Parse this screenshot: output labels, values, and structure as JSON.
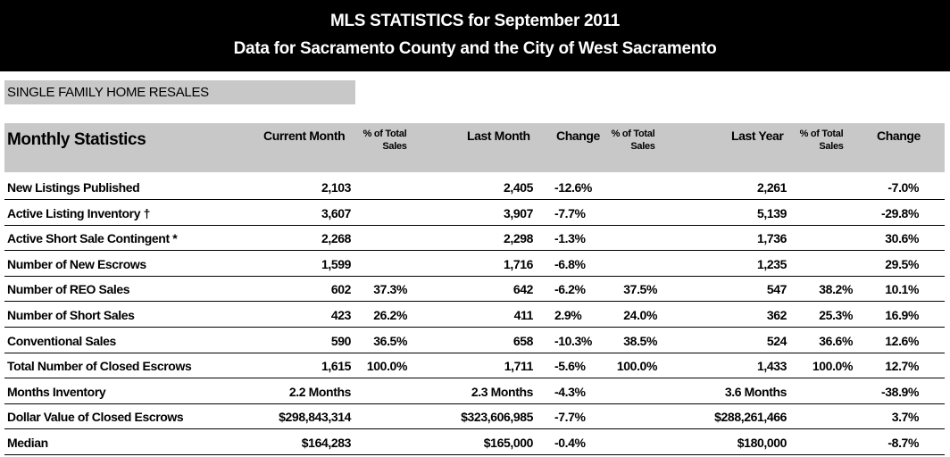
{
  "header": {
    "title": "MLS STATISTICS for September 2011",
    "subtitle": "Data for Sacramento County and the City of West Sacramento"
  },
  "section": "SINGLE FAMILY HOME RESALES",
  "columns": {
    "label": "Monthly Statistics",
    "current": "Current Month",
    "pct": "% of  Total",
    "pct_sub": "Sales",
    "last_month": "Last Month",
    "change": "Change",
    "last_year": "Last Year"
  },
  "rows": [
    {
      "label": "New Listings Published",
      "cur": "2,103",
      "cur_pct": "",
      "lm": "2,405",
      "lm_chg": "-12.6%",
      "lm_pct": "",
      "ly": "2,261",
      "ly_pct": "",
      "ly_chg": "-7.0%"
    },
    {
      "label": "Active Listing Inventory †",
      "cur": "3,607",
      "cur_pct": "",
      "lm": "3,907",
      "lm_chg": "-7.7%",
      "lm_pct": "",
      "ly": "5,139",
      "ly_pct": "",
      "ly_chg": "-29.8%"
    },
    {
      "label": "Active Short Sale Contingent *",
      "cur": "2,268",
      "cur_pct": "",
      "lm": "2,298",
      "lm_chg": "-1.3%",
      "lm_pct": "",
      "ly": "1,736",
      "ly_pct": "",
      "ly_chg": "30.6%"
    },
    {
      "label": "Number of New Escrows",
      "cur": "1,599",
      "cur_pct": "",
      "lm": "1,716",
      "lm_chg": "-6.8%",
      "lm_pct": "",
      "ly": "1,235",
      "ly_pct": "",
      "ly_chg": "29.5%"
    },
    {
      "label": "Number of REO Sales",
      "cur": "602",
      "cur_pct": "37.3%",
      "lm": "642",
      "lm_chg": "-6.2%",
      "lm_pct": "37.5%",
      "ly": "547",
      "ly_pct": "38.2%",
      "ly_chg": "10.1%"
    },
    {
      "label": "Number of Short Sales",
      "cur": "423",
      "cur_pct": "26.2%",
      "lm": "411",
      "lm_chg": "2.9%",
      "lm_pct": "24.0%",
      "ly": "362",
      "ly_pct": "25.3%",
      "ly_chg": "16.9%"
    },
    {
      "label": "Conventional Sales",
      "cur": "590",
      "cur_pct": "36.5%",
      "lm": "658",
      "lm_chg": "-10.3%",
      "lm_pct": "38.5%",
      "ly": "524",
      "ly_pct": "36.6%",
      "ly_chg": "12.6%"
    },
    {
      "label": "Total Number of Closed Escrows",
      "cur": "1,615",
      "cur_pct": "100.0%",
      "lm": "1,711",
      "lm_chg": "-5.6%",
      "lm_pct": "100.0%",
      "ly": "1,433",
      "ly_pct": "100.0%",
      "ly_chg": "12.7%"
    },
    {
      "label": "Months Inventory",
      "cur": "2.2 Months",
      "cur_pct": "",
      "lm": "2.3 Months",
      "lm_chg": "-4.3%",
      "lm_pct": "",
      "ly": "3.6 Months",
      "ly_pct": "",
      "ly_chg": "-38.9%"
    },
    {
      "label": "Dollar Value of Closed Escrows",
      "cur": "$298,843,314",
      "cur_pct": "",
      "lm": "$323,606,985",
      "lm_chg": "-7.7%",
      "lm_pct": "",
      "ly": "$288,261,466",
      "ly_pct": "",
      "ly_chg": "3.7%"
    },
    {
      "label": "Median",
      "cur": "$164,283",
      "cur_pct": "",
      "lm": "$165,000",
      "lm_chg": "-0.4%",
      "lm_pct": "",
      "ly": "$180,000",
      "ly_pct": "",
      "ly_chg": "-8.7%"
    }
  ]
}
